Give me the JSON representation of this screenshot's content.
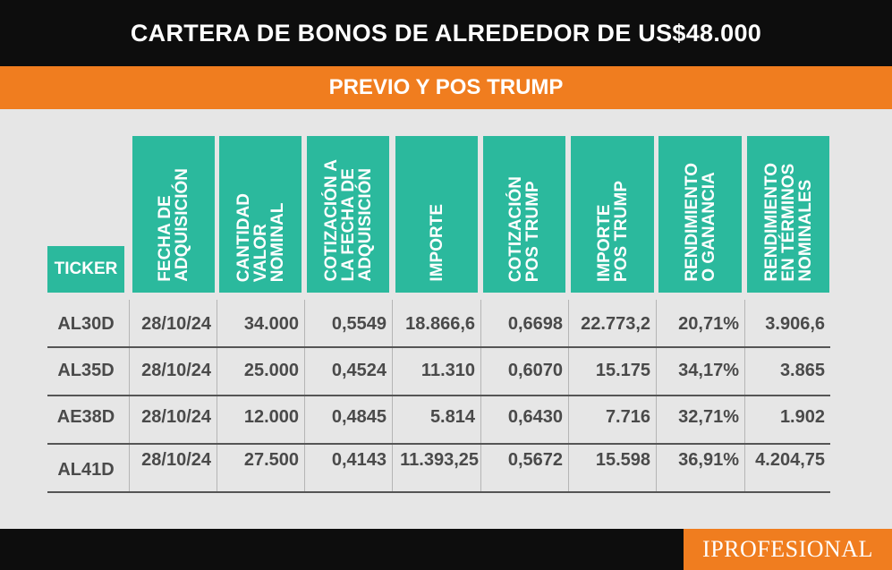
{
  "title": "CARTERA DE BONOS DE ALREDEDOR DE US$48.000",
  "subtitle": "PREVIO Y POS TRUMP",
  "headers": [
    "TICKER",
    "FECHA DE\nADQUISICIÓN",
    "CANTIDAD\nVALOR\nNOMINAL",
    "COTIZACIÓN A\nLA FECHA DE\nADQUISICIÓN",
    "IMPORTE",
    "COTIZACIÓN\nPOS TRUMP",
    "IMPORTE\nPOS TRUMP",
    "RENDIMIENTO\nO GANANCIA",
    "RENDIMIENTO\nEN TÉRMINOS\nNOMINALES"
  ],
  "rows": [
    [
      "AL30D",
      "28/10/24",
      "34.000",
      "0,5549",
      "18.866,6",
      "0,6698",
      "22.773,2",
      "20,71%",
      "3.906,6"
    ],
    [
      "AL35D",
      "28/10/24",
      "25.000",
      "0,4524",
      "11.310",
      "0,6070",
      "15.175",
      "34,17%",
      "3.865"
    ],
    [
      "AE38D",
      "28/10/24",
      "12.000",
      "0,4845",
      "5.814",
      "0,6430",
      "7.716",
      "32,71%",
      "1.902"
    ],
    [
      "AL41D",
      "28/10/24",
      "27.500",
      "0,4143",
      "11.393,25",
      "0,5672",
      "15.598",
      "36,91%",
      "4.204,75"
    ]
  ],
  "logo": "IPROFESIONAL",
  "colors": {
    "header_bg": "#2bb99d",
    "accent": "#f07d1f",
    "dark": "#0d0d0d",
    "body_bg": "#e6e6e6"
  }
}
